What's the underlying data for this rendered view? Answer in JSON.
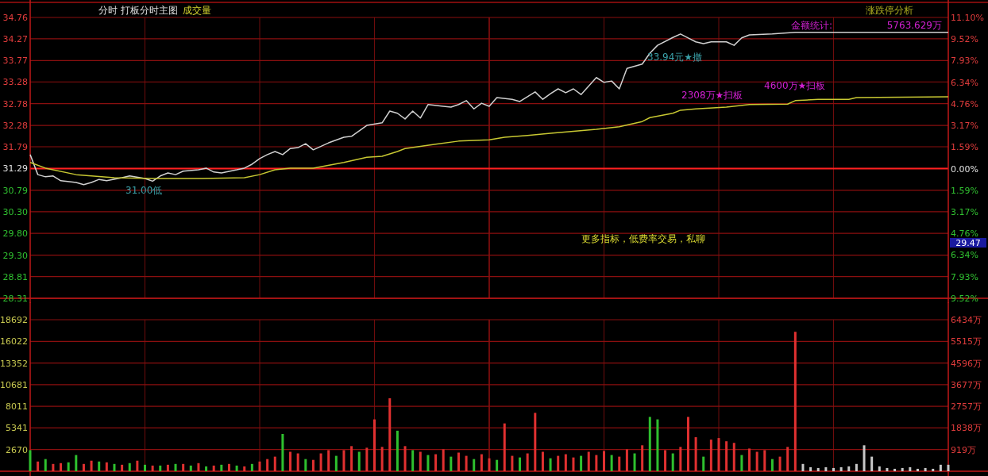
{
  "chart_data": [
    {
      "type": "line",
      "title": "分时 打板分时主图",
      "subtitle": "成交量",
      "categories": [
        null,
        null,
        null,
        null,
        null,
        null,
        null,
        null,
        null,
        null,
        null,
        null,
        null,
        null,
        null,
        null,
        null,
        null,
        null,
        null,
        null,
        null,
        null,
        null,
        null,
        null,
        null,
        null,
        null,
        null,
        null,
        null,
        null,
        null,
        null,
        null,
        null,
        null,
        null,
        null,
        null,
        null,
        null,
        null,
        null,
        null,
        null,
        null,
        null,
        null,
        null,
        null,
        null,
        null,
        null,
        null,
        null,
        null,
        null,
        null,
        null,
        null,
        null,
        null,
        null,
        null,
        null,
        null,
        null,
        null,
        null,
        null,
        null,
        null,
        null,
        null,
        null,
        null,
        null,
        null,
        null,
        null,
        null,
        null,
        null,
        null,
        null,
        null,
        null,
        null,
        null,
        null,
        null,
        null,
        null,
        null,
        null,
        null,
        null,
        null,
        null,
        null,
        null,
        null,
        null,
        null,
        null,
        null,
        null,
        null,
        null,
        null,
        null,
        null,
        null,
        null,
        null,
        null,
        null,
        null,
        null
      ],
      "ylim": [
        28.31,
        34.76
      ],
      "yticks": [
        28.31,
        28.81,
        {
          "value": 29.3,
          "label": "29.30"
        },
        {
          "value": 29.8,
          "label": "29.80"
        },
        {
          "value": 30.3,
          "label": "30.30"
        },
        30.79,
        31.29,
        31.79,
        32.28,
        32.78,
        33.28,
        33.77,
        34.27,
        34.76
      ],
      "y2lim": [
        -9.52,
        11.1
      ],
      "y2ticks": [
        {
          "value": -9.52,
          "label": "9.52%"
        },
        {
          "value": -7.93,
          "label": "7.93%"
        },
        {
          "value": -6.34,
          "label": "6.34%"
        },
        {
          "value": -4.76,
          "label": "4.76%"
        },
        {
          "value": -3.17,
          "label": "3.17%"
        },
        {
          "value": -1.59,
          "label": "1.59%"
        },
        {
          "value": 0,
          "label": "0.00%"
        },
        {
          "value": 1.59,
          "label": "1.59%"
        },
        {
          "value": 3.17,
          "label": "3.17%"
        },
        {
          "value": 4.76,
          "label": "4.76%"
        },
        {
          "value": 6.34,
          "label": "6.34%"
        },
        {
          "value": 7.93,
          "label": "7.93%"
        },
        {
          "value": 9.52,
          "label": "9.52%"
        },
        {
          "value": 11.1,
          "label": "11.10%"
        }
      ],
      "tick_labels": "y",
      "grid": true,
      "ref_lines": [
        {
          "axis": "y",
          "value": 31.29,
          "color": "#ff2020"
        }
      ],
      "series": [
        {
          "color": "#d0d0d0",
          "values": [
            31.61,
            31.15,
            31.1,
            31.12,
            31.01,
            null,
            30.97,
            30.92,
            30.97,
            31.04,
            31.01,
            null,
            31.08,
            31.12,
            null,
            31.06,
            31.0,
            31.12,
            31.19,
            31.15,
            31.23,
            null,
            31.26,
            31.3,
            31.21,
            31.19,
            null,
            31.26,
            31.3,
            31.39,
            31.52,
            31.61,
            31.68,
            31.61,
            31.75,
            31.77,
            31.86,
            31.72,
            null,
            31.88,
            null,
            32.01,
            32.03,
            null,
            32.28,
            null,
            32.34,
            32.61,
            32.56,
            32.43,
            32.61,
            32.45,
            32.76,
            null,
            32.72,
            32.7,
            32.76,
            32.85,
            32.66,
            32.79,
            32.72,
            32.92,
            null,
            32.88,
            32.83,
            null,
            33.05,
            32.88,
            33.01,
            33.12,
            33.03,
            33.12,
            32.99,
            null,
            33.38,
            33.27,
            33.3,
            33.12,
            33.59,
            null,
            33.69,
            33.94,
            34.12,
            null,
            34.3,
            34.38,
            34.29,
            34.2,
            34.16,
            34.2,
            null,
            34.2,
            34.12,
            34.29,
            34.36,
            null,
            null,
            34.38,
            null,
            null,
            34.42,
            34.42,
            34.42,
            34.42,
            34.42,
            34.42,
            34.42,
            34.42,
            34.42,
            34.42,
            34.42,
            34.42,
            34.42,
            34.42,
            34.42,
            34.42,
            34.42,
            34.42,
            34.42,
            34.42,
            34.42
          ]
        },
        {
          "color": "#c8c832",
          "values": [
            31.43,
            null,
            31.3,
            null,
            null,
            null,
            31.15,
            null,
            null,
            null,
            null,
            31.08,
            null,
            null,
            null,
            null,
            31.06,
            null,
            null,
            null,
            null,
            null,
            31.06,
            null,
            null,
            null,
            null,
            null,
            31.08,
            null,
            31.15,
            null,
            31.26,
            null,
            31.3,
            null,
            null,
            31.3,
            null,
            null,
            null,
            31.43,
            null,
            null,
            31.55,
            null,
            31.57,
            null,
            31.68,
            31.75,
            null,
            null,
            null,
            31.85,
            null,
            null,
            31.92,
            null,
            null,
            null,
            31.95,
            null,
            32.01,
            null,
            null,
            32.05,
            null,
            null,
            32.1,
            null,
            null,
            null,
            null,
            null,
            32.19,
            null,
            null,
            32.25,
            null,
            null,
            32.37,
            32.46,
            null,
            null,
            32.56,
            32.63,
            null,
            32.66,
            null,
            null,
            null,
            32.7,
            null,
            null,
            32.76,
            null,
            null,
            null,
            null,
            32.77,
            32.85,
            null,
            null,
            32.88,
            null,
            null,
            null,
            32.88,
            32.92,
            null,
            null,
            null,
            null,
            null,
            null,
            null,
            null,
            null,
            null,
            null,
            32.94
          ]
        }
      ],
      "annotations": [
        {
          "text": "31.00低",
          "y": 31.0
        },
        "33.94元★撤",
        "2308万★扫板",
        "4600万★扫板",
        "金额统计:",
        "5763.629万",
        "更多指标，低费率交易，私聊",
        "29.47",
        "涨跌停分析"
      ]
    },
    {
      "type": "bar",
      "categories": [
        null,
        null,
        null,
        null,
        null,
        null,
        null,
        null,
        null,
        null,
        null,
        null,
        null,
        null,
        null,
        null,
        null,
        null,
        null,
        null,
        null,
        null,
        null,
        null,
        null,
        null,
        null,
        null,
        null,
        null,
        null,
        null,
        null,
        null,
        null,
        null,
        null,
        null,
        null,
        null,
        null,
        null,
        null,
        null,
        null,
        null,
        null,
        null,
        null,
        null,
        null,
        null,
        null,
        null,
        null,
        null,
        null,
        null,
        null,
        null,
        null,
        null,
        null,
        null,
        null,
        null,
        null,
        null,
        null,
        null,
        null,
        null,
        null,
        null,
        null,
        null,
        null,
        null,
        null,
        null,
        null,
        null,
        null,
        null,
        null,
        null,
        null,
        null,
        null,
        null,
        null,
        null,
        null,
        null,
        null,
        null,
        null,
        null,
        null,
        null,
        null,
        null,
        null,
        null,
        null,
        null,
        null,
        null,
        null,
        null,
        null,
        null,
        null,
        null,
        null,
        null,
        null,
        null,
        null,
        null,
        null
      ],
      "ylim": [
        0,
        18692
      ],
      "yticks": [
        2670,
        5341,
        8011,
        10681,
        13352,
        16022,
        18692
      ],
      "y2lim": [
        0,
        6434
      ],
      "y2ticks": [
        {
          "value": 919,
          "label": "919万"
        },
        {
          "value": 1838,
          "label": "1838万"
        },
        {
          "value": 2757,
          "label": "2757万"
        },
        {
          "value": 3677,
          "label": "3677万"
        },
        {
          "value": 4596,
          "label": "4596万"
        },
        {
          "value": 5515,
          "label": "5515万"
        },
        {
          "value": 6434,
          "label": "6434万"
        }
      ],
      "tick_labels": "y",
      "grid": true,
      "values": [
        2600,
        1200,
        1500,
        900,
        1000,
        1100,
        2000,
        900,
        1300,
        1200,
        1100,
        900,
        800,
        1000,
        1300,
        800,
        700,
        700,
        800,
        900,
        900,
        700,
        1000,
        600,
        700,
        800,
        900,
        700,
        600,
        900,
        1200,
        1500,
        1800,
        4600,
        2400,
        2200,
        1500,
        1400,
        2200,
        2600,
        1900,
        2600,
        3100,
        2400,
        2900,
        6400,
        3000,
        9000,
        5000,
        3100,
        2600,
        2400,
        2000,
        2100,
        2700,
        1800,
        2300,
        1900,
        1500,
        2100,
        1600,
        1400,
        5900,
        1900,
        1700,
        2200,
        7200,
        2400,
        1600,
        1900,
        2100,
        1700,
        1900,
        2400,
        2000,
        2500,
        2000,
        1800,
        2700,
        2200,
        3200,
        6700,
        6400,
        2600,
        2200,
        3000,
        6700,
        4200,
        1800,
        3900,
        4100,
        3700,
        3500,
        2000,
        2800,
        2400,
        2600,
        1500,
        1800,
        3000,
        17200,
        900,
        500,
        400,
        500,
        400,
        500,
        600,
        900,
        3200,
        1800,
        600,
        400,
        300,
        400,
        500,
        300,
        400,
        300,
        800,
        800
      ],
      "colors": [
        "#2ec02e",
        "#e03030",
        "#2ec02e",
        "#e03030",
        "#e03030",
        "#2ec02e",
        "#2ec02e",
        "#e03030",
        "#e03030",
        "#2ec02e",
        "#e03030",
        "#2ec02e",
        "#e03030",
        "#2ec02e",
        "#e03030",
        "#2ec02e",
        "#e03030",
        "#2ec02e",
        "#e03030",
        "#2ec02e",
        "#e03030",
        "#2ec02e",
        "#e03030",
        "#2ec02e",
        "#e03030",
        "#2ec02e",
        "#e03030",
        "#2ec02e",
        "#e03030",
        "#2ec02e",
        "#e03030",
        "#e03030",
        "#e03030",
        "#2ec02e",
        "#e03030",
        "#e03030",
        "#2ec02e",
        "#e03030",
        "#e03030",
        "#e03030",
        "#2ec02e",
        "#e03030",
        "#e03030",
        "#2ec02e",
        "#e03030",
        "#e03030",
        "#e03030",
        "#e03030",
        "#2ec02e",
        "#e03030",
        "#2ec02e",
        "#e03030",
        "#2ec02e",
        "#e03030",
        "#e03030",
        "#2ec02e",
        "#e03030",
        "#e03030",
        "#2ec02e",
        "#e03030",
        "#e03030",
        "#2ec02e",
        "#e03030",
        "#e03030",
        "#2ec02e",
        "#e03030",
        "#e03030",
        "#e03030",
        "#2ec02e",
        "#e03030",
        "#e03030",
        "#e03030",
        "#2ec02e",
        "#e03030",
        "#e03030",
        "#e03030",
        "#2ec02e",
        "#e03030",
        "#e03030",
        "#2ec02e",
        "#e03030",
        "#2ec02e",
        "#2ec02e",
        "#e03030",
        "#2ec02e",
        "#e03030",
        "#e03030",
        "#e03030",
        "#2ec02e",
        "#e03030",
        "#e03030",
        "#e03030",
        "#e03030",
        "#2ec02e",
        "#e03030",
        "#e03030",
        "#e03030",
        "#2ec02e",
        "#e03030",
        "#e03030",
        "#e03030",
        "#c8c8c8",
        "#c8c8c8",
        "#c8c8c8",
        "#c8c8c8",
        "#c8c8c8",
        "#c8c8c8",
        "#c8c8c8",
        "#c8c8c8",
        "#c8c8c8",
        "#c8c8c8",
        "#c8c8c8",
        "#c8c8c8",
        "#c8c8c8",
        "#c8c8c8",
        "#c8c8c8",
        "#c8c8c8",
        "#c8c8c8",
        "#c8c8c8",
        "#c8c8c8",
        "#c8c8c8"
      ]
    }
  ]
}
